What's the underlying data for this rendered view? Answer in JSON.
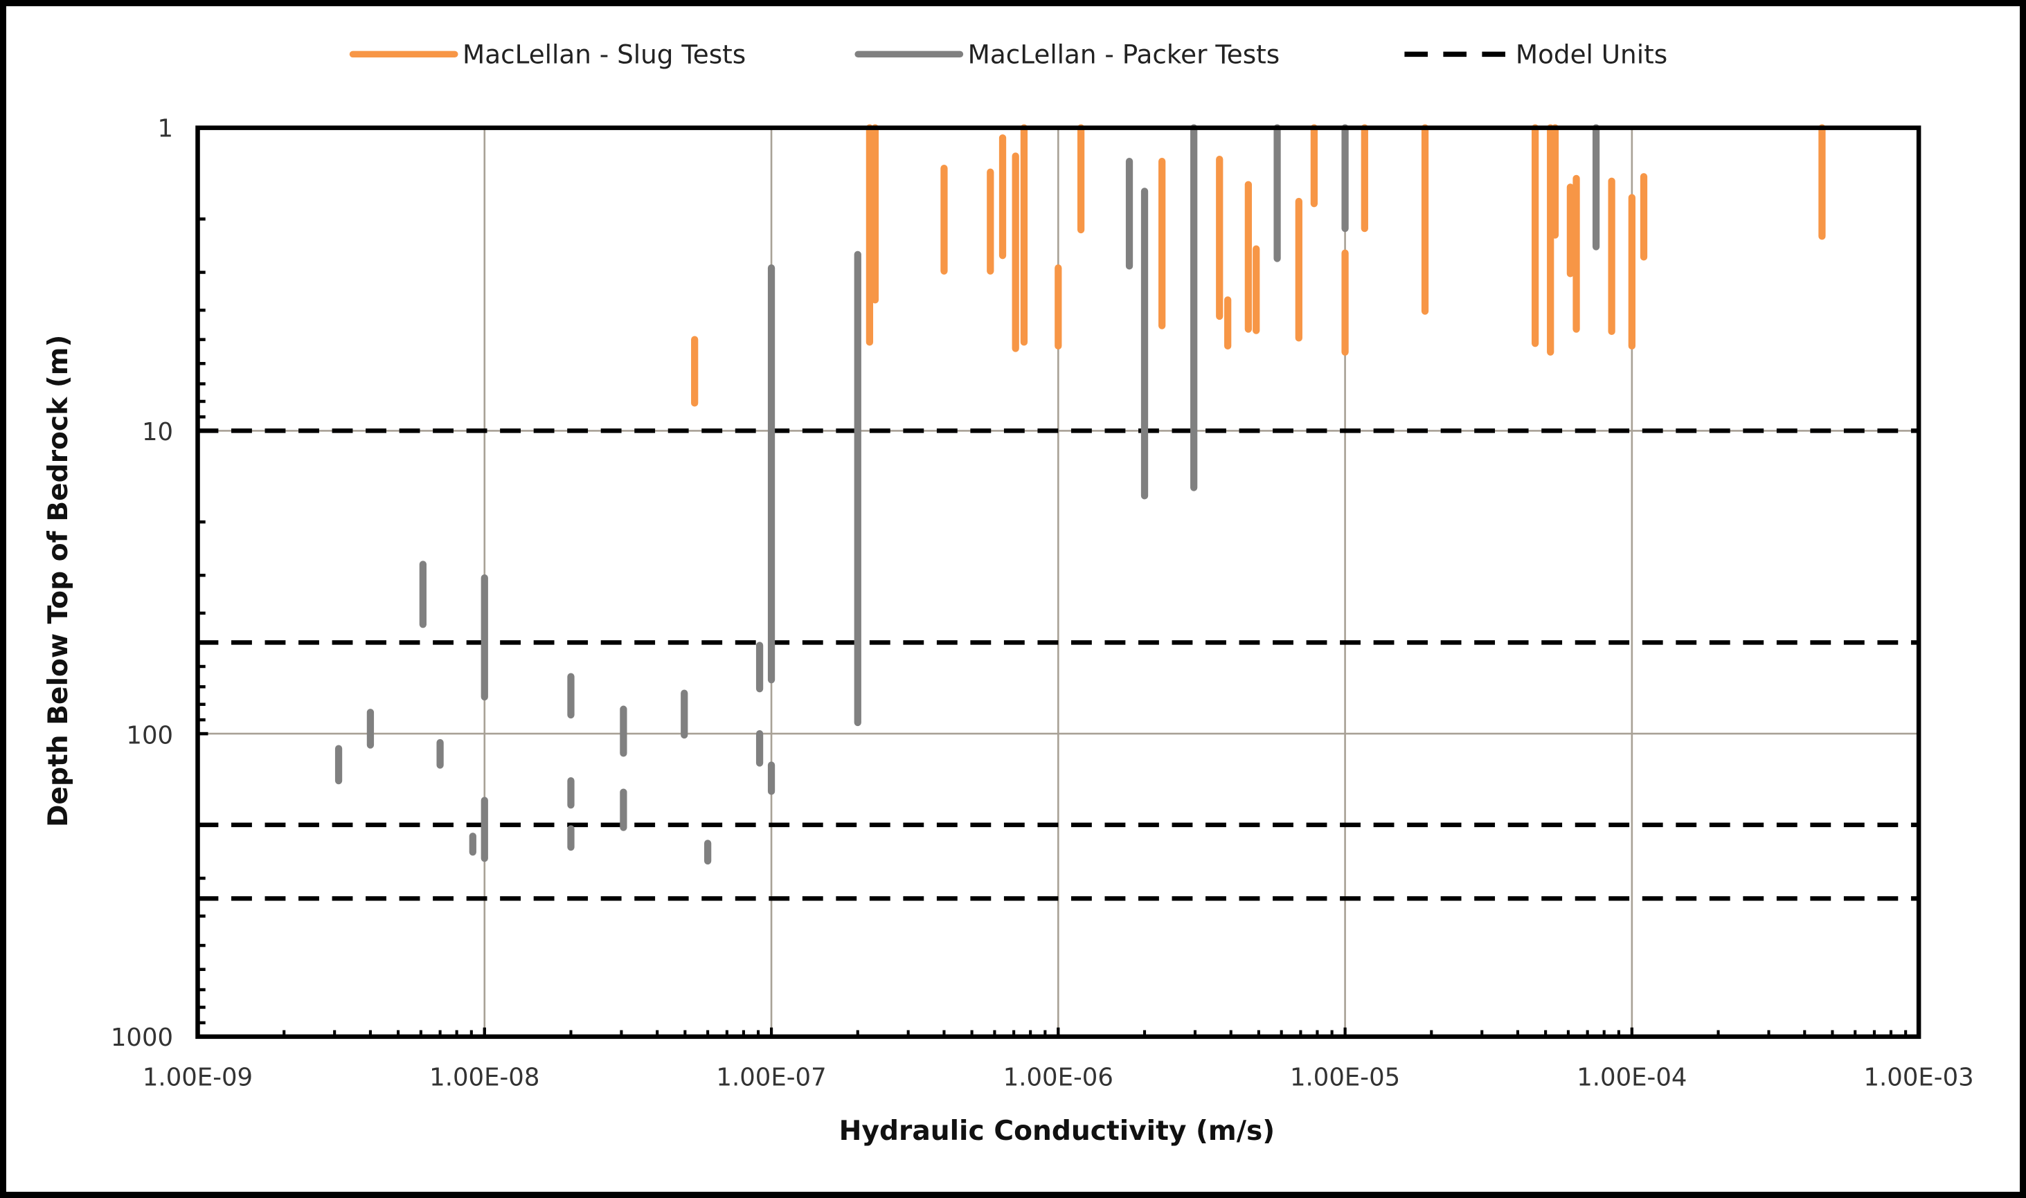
{
  "legend": {
    "items": [
      {
        "label": "MacLellan - Slug Tests",
        "color": "#F79646",
        "style": "solid"
      },
      {
        "label": "MacLellan - Packer Tests",
        "color": "#808080",
        "style": "solid"
      },
      {
        "label": "Model Units",
        "color": "#000000",
        "style": "dashed"
      }
    ]
  },
  "axes": {
    "x_title": "Hydraulic Conductivity (m/s)",
    "y_title": "Depth Below Top of Bedrock (m)",
    "x_ticks": [
      "1.00E-09",
      "1.00E-08",
      "1.00E-07",
      "1.00E-06",
      "1.00E-05",
      "1.00E-04",
      "1.00E-03"
    ],
    "y_ticks": [
      "1",
      "10",
      "100",
      "1000"
    ]
  },
  "colors": {
    "slug": "#F79646",
    "packer": "#808080",
    "model_units": "#000000",
    "grid": "#A8A196",
    "border": "#000000"
  },
  "chart_data": {
    "type": "line",
    "title": "",
    "xlabel": "Hydraulic Conductivity (m/s)",
    "ylabel": "Depth Below Top of Bedrock (m)",
    "x_scale": "log",
    "y_scale": "log",
    "y_inverted": true,
    "xlim": [
      1e-09,
      0.001
    ],
    "ylim": [
      1,
      1000
    ],
    "grid": true,
    "legend_position": "top",
    "x_tick_labels": [
      "1.00E-09",
      "1.00E-08",
      "1.00E-07",
      "1.00E-06",
      "1.00E-05",
      "1.00E-04",
      "1.00E-03"
    ],
    "y_tick_labels": [
      "1",
      "10",
      "100",
      "1000"
    ],
    "series": [
      {
        "name": "MacLellan - Slug Tests",
        "color": "#F79646",
        "kind": "vertical-interval",
        "points": [
          {
            "k": 5.4e-08,
            "top": 5.0,
            "bottom": 8.1
          },
          {
            "k": 2.2e-07,
            "top": 1.0,
            "bottom": 5.1
          },
          {
            "k": 2.3e-07,
            "top": 1.0,
            "bottom": 3.7
          },
          {
            "k": 4e-07,
            "top": 1.36,
            "bottom": 2.97
          },
          {
            "k": 5.8e-07,
            "top": 1.4,
            "bottom": 2.97
          },
          {
            "k": 6.4e-07,
            "top": 1.08,
            "bottom": 2.64
          },
          {
            "k": 7.1e-07,
            "top": 1.24,
            "bottom": 5.35
          },
          {
            "k": 7.6e-07,
            "top": 1.0,
            "bottom": 5.1
          },
          {
            "k": 1e-06,
            "top": 2.9,
            "bottom": 5.25
          },
          {
            "k": 1.2e-06,
            "top": 1.0,
            "bottom": 2.17
          },
          {
            "k": 2.3e-06,
            "top": 1.29,
            "bottom": 4.5
          },
          {
            "k": 3.65e-06,
            "top": 1.27,
            "bottom": 4.19
          },
          {
            "k": 3.9e-06,
            "top": 3.7,
            "bottom": 5.25
          },
          {
            "k": 4.6e-06,
            "top": 1.54,
            "bottom": 4.62
          },
          {
            "k": 4.9e-06,
            "top": 2.51,
            "bottom": 4.67
          },
          {
            "k": 6.9e-06,
            "top": 1.75,
            "bottom": 4.94
          },
          {
            "k": 7.8e-06,
            "top": 1.0,
            "bottom": 1.78
          },
          {
            "k": 1e-05,
            "top": 2.59,
            "bottom": 5.5
          },
          {
            "k": 1.17e-05,
            "top": 1.0,
            "bottom": 2.15
          },
          {
            "k": 1.9e-05,
            "top": 1.0,
            "bottom": 4.03
          },
          {
            "k": 4.6e-05,
            "top": 1.0,
            "bottom": 5.15
          },
          {
            "k": 5.2e-05,
            "top": 1.0,
            "bottom": 5.5
          },
          {
            "k": 5.4e-05,
            "top": 1.0,
            "bottom": 2.26
          },
          {
            "k": 6.1e-05,
            "top": 1.57,
            "bottom": 3.03
          },
          {
            "k": 6.4e-05,
            "top": 1.47,
            "bottom": 4.62
          },
          {
            "k": 8.5e-05,
            "top": 1.5,
            "bottom": 4.7
          },
          {
            "k": 0.0001,
            "top": 1.7,
            "bottom": 5.25
          },
          {
            "k": 0.00011,
            "top": 1.45,
            "bottom": 2.67
          },
          {
            "k": 0.00046,
            "top": 1.0,
            "bottom": 2.28
          }
        ]
      },
      {
        "name": "MacLellan - Packer Tests",
        "color": "#808080",
        "kind": "vertical-interval",
        "points": [
          {
            "k": 3.1e-09,
            "top": 112,
            "bottom": 143
          },
          {
            "k": 4e-09,
            "top": 85,
            "bottom": 109
          },
          {
            "k": 6.1e-09,
            "top": 27.6,
            "bottom": 43.6
          },
          {
            "k": 7e-09,
            "top": 107,
            "bottom": 127
          },
          {
            "k": 9.1e-09,
            "top": 218,
            "bottom": 246
          },
          {
            "k": 1e-08,
            "top": 30.6,
            "bottom": 75.6
          },
          {
            "k": 1e-08,
            "top": 166,
            "bottom": 258
          },
          {
            "k": 2e-08,
            "top": 64.8,
            "bottom": 86.7
          },
          {
            "k": 2e-08,
            "top": 143,
            "bottom": 172
          },
          {
            "k": 2e-08,
            "top": 206,
            "bottom": 237
          },
          {
            "k": 3.05e-08,
            "top": 83,
            "bottom": 116
          },
          {
            "k": 3.05e-08,
            "top": 156,
            "bottom": 204
          },
          {
            "k": 4.97e-08,
            "top": 73.5,
            "bottom": 101
          },
          {
            "k": 6e-08,
            "top": 230,
            "bottom": 263
          },
          {
            "k": 9.1e-08,
            "top": 51.1,
            "bottom": 71.1
          },
          {
            "k": 9.1e-08,
            "top": 100,
            "bottom": 125
          },
          {
            "k": 1e-07,
            "top": 2.9,
            "bottom": 66.4
          },
          {
            "k": 1e-07,
            "top": 127,
            "bottom": 155
          },
          {
            "k": 2e-07,
            "top": 2.62,
            "bottom": 91.9
          },
          {
            "k": 1.77e-06,
            "top": 1.29,
            "bottom": 2.86
          },
          {
            "k": 2e-06,
            "top": 1.62,
            "bottom": 16.4
          },
          {
            "k": 2.97e-06,
            "top": 1.0,
            "bottom": 15.4
          },
          {
            "k": 5.8e-06,
            "top": 1.0,
            "bottom": 2.7
          },
          {
            "k": 1e-05,
            "top": 1.0,
            "bottom": 2.15
          },
          {
            "k": 7.5e-05,
            "top": 1.0,
            "bottom": 2.47
          }
        ]
      },
      {
        "name": "Model Units",
        "color": "#000000",
        "kind": "horizontal-dashed",
        "depths": [
          10,
          50,
          200,
          350
        ]
      }
    ]
  }
}
